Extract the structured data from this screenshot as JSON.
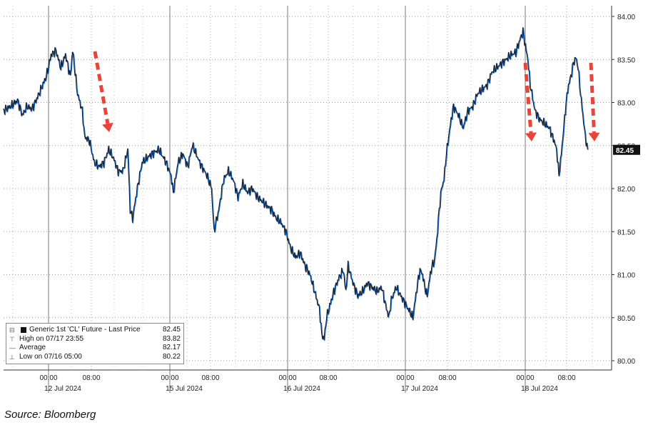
{
  "chart_data": {
    "type": "line",
    "y_axis": {
      "ticks": [
        "80.00",
        "80.50",
        "81.00",
        "81.50",
        "82.00",
        "82.50",
        "83.00",
        "83.50",
        "84.00"
      ],
      "ylim": [
        79.9,
        84.15
      ],
      "position": "right"
    },
    "x_axis": {
      "time_ticks": [
        "00:00",
        "08:00",
        "00:00",
        "08:00",
        "00:00",
        "08:00",
        "00:00",
        "08:00",
        "00:00",
        "08:00"
      ],
      "date_labels": [
        "12 Jul 2024",
        "15 Jul 2024",
        "16 Jul 2024",
        "17 Jul 2024",
        "18 Jul 2024"
      ]
    },
    "grid": true,
    "last_price_label": "82.45",
    "series": [
      {
        "name": "Generic 1st 'CL' Future - Last Price",
        "color": "#1a1a1a",
        "accent_color": "#1f6fd1",
        "points": [
          [
            0,
            82.9
          ],
          [
            3,
            82.95
          ],
          [
            6,
            83.02
          ],
          [
            8,
            82.85
          ],
          [
            10,
            82.95
          ],
          [
            12,
            82.92
          ],
          [
            15,
            83.1
          ],
          [
            18,
            83.3
          ],
          [
            20,
            83.55
          ],
          [
            22,
            83.6
          ],
          [
            24,
            83.4
          ],
          [
            26,
            83.55
          ],
          [
            28,
            83.3
          ],
          [
            29,
            83.6
          ],
          [
            31,
            83.1
          ],
          [
            33,
            82.9
          ],
          [
            34,
            82.6
          ],
          [
            36,
            82.55
          ],
          [
            38,
            82.3
          ],
          [
            40,
            82.25
          ],
          [
            42,
            82.3
          ],
          [
            44,
            82.45
          ],
          [
            46,
            82.35
          ],
          [
            48,
            82.2
          ],
          [
            50,
            82.2
          ],
          [
            52,
            82.45
          ],
          [
            53,
            81.75
          ],
          [
            54,
            81.65
          ],
          [
            56,
            82.0
          ],
          [
            58,
            82.3
          ],
          [
            60,
            82.35
          ],
          [
            62,
            82.4
          ],
          [
            65,
            82.45
          ],
          [
            68,
            82.3
          ],
          [
            70,
            82.15
          ],
          [
            71,
            81.95
          ],
          [
            73,
            82.3
          ],
          [
            75,
            82.4
          ],
          [
            77,
            82.25
          ],
          [
            79,
            82.5
          ],
          [
            82,
            82.3
          ],
          [
            85,
            82.15
          ],
          [
            87,
            82.0
          ],
          [
            88,
            81.5
          ],
          [
            90,
            81.75
          ],
          [
            92,
            82.1
          ],
          [
            94,
            82.2
          ],
          [
            96,
            82.1
          ],
          [
            98,
            81.9
          ],
          [
            100,
            82.05
          ],
          [
            102,
            81.95
          ],
          [
            104,
            82.0
          ],
          [
            106,
            81.9
          ],
          [
            108,
            81.85
          ],
          [
            110,
            81.8
          ],
          [
            112,
            81.75
          ],
          [
            114,
            81.65
          ],
          [
            116,
            81.6
          ],
          [
            118,
            81.5
          ],
          [
            120,
            81.3
          ],
          [
            122,
            81.2
          ],
          [
            124,
            81.25
          ],
          [
            126,
            81.1
          ],
          [
            128,
            81.0
          ],
          [
            130,
            80.8
          ],
          [
            132,
            80.6
          ],
          [
            133,
            80.3
          ],
          [
            134,
            80.25
          ],
          [
            135,
            80.5
          ],
          [
            136,
            80.6
          ],
          [
            138,
            80.8
          ],
          [
            140,
            80.95
          ],
          [
            142,
            81.05
          ],
          [
            143,
            80.8
          ],
          [
            144,
            81.1
          ],
          [
            146,
            80.9
          ],
          [
            148,
            80.75
          ],
          [
            150,
            80.8
          ],
          [
            152,
            80.9
          ],
          [
            154,
            80.85
          ],
          [
            156,
            80.8
          ],
          [
            158,
            80.85
          ],
          [
            160,
            80.6
          ],
          [
            161,
            80.5
          ],
          [
            162,
            80.7
          ],
          [
            164,
            80.85
          ],
          [
            166,
            80.75
          ],
          [
            168,
            80.65
          ],
          [
            170,
            80.55
          ],
          [
            171,
            80.5
          ],
          [
            172,
            80.7
          ],
          [
            173,
            80.9
          ],
          [
            174,
            81.05
          ],
          [
            175,
            81.0
          ],
          [
            176,
            80.85
          ],
          [
            177,
            80.75
          ],
          [
            178,
            80.95
          ],
          [
            179,
            81.1
          ],
          [
            180,
            81.15
          ],
          [
            181,
            81.4
          ],
          [
            182,
            81.75
          ],
          [
            183,
            82.0
          ],
          [
            184,
            82.1
          ],
          [
            185,
            82.4
          ],
          [
            186,
            82.6
          ],
          [
            187,
            82.8
          ],
          [
            188,
            82.95
          ],
          [
            190,
            82.85
          ],
          [
            192,
            82.7
          ],
          [
            194,
            82.9
          ],
          [
            196,
            82.95
          ],
          [
            198,
            83.1
          ],
          [
            200,
            83.15
          ],
          [
            202,
            83.2
          ],
          [
            204,
            83.35
          ],
          [
            206,
            83.4
          ],
          [
            208,
            83.45
          ],
          [
            210,
            83.5
          ],
          [
            212,
            83.55
          ],
          [
            214,
            83.58
          ],
          [
            216,
            83.75
          ],
          [
            217,
            83.82
          ],
          [
            218,
            83.65
          ],
          [
            219,
            83.5
          ],
          [
            220,
            83.2
          ],
          [
            221,
            83.05
          ],
          [
            222,
            82.9
          ],
          [
            224,
            82.8
          ],
          [
            226,
            82.75
          ],
          [
            228,
            82.7
          ],
          [
            230,
            82.55
          ],
          [
            231,
            82.45
          ],
          [
            232,
            82.15
          ],
          [
            233,
            82.4
          ],
          [
            234,
            82.7
          ],
          [
            235,
            83.0
          ],
          [
            236,
            83.2
          ],
          [
            237,
            83.3
          ],
          [
            238,
            83.45
          ],
          [
            239,
            83.52
          ],
          [
            240,
            83.4
          ],
          [
            241,
            83.1
          ],
          [
            242,
            82.85
          ],
          [
            243,
            82.6
          ],
          [
            244,
            82.45
          ]
        ]
      }
    ]
  },
  "legend": {
    "series_label": "Generic 1st 'CL' Future - Last Price",
    "series_value": "82.45",
    "high_label": "High on 07/17 23:55",
    "high_value": "83.82",
    "avg_label": "Average",
    "avg_value": "82.17",
    "low_label": "Low on 07/16 05:00",
    "low_value": "80.22"
  },
  "source": "Source: Bloomberg",
  "colors": {
    "arrow": "#e8443a",
    "line": "#1a1a1a",
    "accent": "#1f6fd1"
  }
}
